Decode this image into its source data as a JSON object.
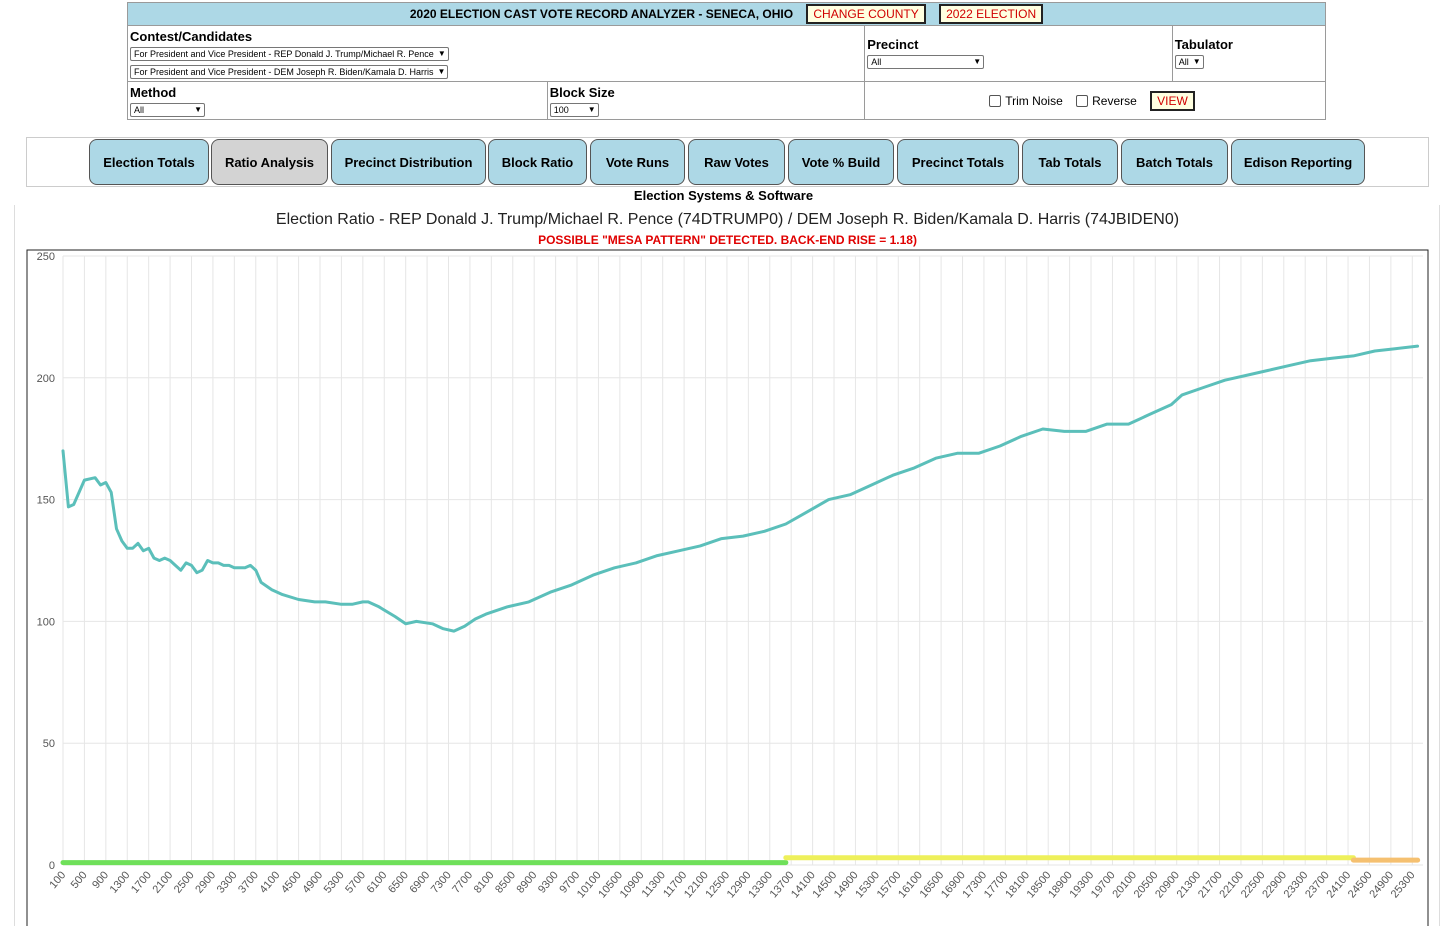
{
  "header": {
    "title": "2020 ELECTION CAST VOTE RECORD ANALYZER - SENECA, OHIO",
    "change_county": "CHANGE COUNTY",
    "election_2022": "2022 ELECTION"
  },
  "filters": {
    "contest_label": "Contest/Candidates",
    "contest1": "For President and Vice President - REP Donald J. Trump/Michael R. Pence",
    "contest2": "For President and Vice President - DEM Joseph R. Biden/Kamala D. Harris",
    "precinct_label": "Precinct",
    "precinct_value": "All",
    "tabulator_label": "Tabulator",
    "tabulator_value": "All",
    "method_label": "Method",
    "method_value": "All",
    "block_label": "Block Size",
    "block_value": "100",
    "trim_noise": "Trim Noise",
    "reverse": "Reverse",
    "view": "VIEW"
  },
  "tabs": [
    "Election Totals",
    "Ratio Analysis",
    "Precinct Distribution",
    "Block Ratio",
    "Vote Runs",
    "Raw Votes",
    "Vote % Build",
    "Precinct Totals",
    "Tab Totals",
    "Batch Totals",
    "Edison Reporting"
  ],
  "active_tab": "Ratio Analysis",
  "vendor": "Election Systems & Software",
  "chart_data": {
    "type": "line",
    "title": "Election Ratio - REP Donald J. Trump/Michael R. Pence (74DTRUMP0) / DEM Joseph R. Biden/Kamala D. Harris (74JBIDEN0)",
    "subtitle": "POSSIBLE \"MESA PATTERN\" DETECTED. BACK-END RISE = 1.18)",
    "ylim": [
      0,
      250
    ],
    "yticks": [
      0,
      50,
      100,
      150,
      200,
      250
    ],
    "xlim": [
      100,
      25500
    ],
    "xtick_start": 100,
    "xtick_step": 400,
    "xtick_end": 25300,
    "grid": true,
    "series": [
      {
        "color": "#5bbfba",
        "x": [
          100,
          200,
          300,
          500,
          700,
          800,
          900,
          1000,
          1100,
          1200,
          1300,
          1400,
          1500,
          1600,
          1700,
          1800,
          1900,
          2000,
          2100,
          2200,
          2300,
          2400,
          2500,
          2600,
          2700,
          2800,
          2900,
          3000,
          3100,
          3200,
          3300,
          3400,
          3500,
          3600,
          3700,
          3800,
          4000,
          4200,
          4500,
          4800,
          5000,
          5300,
          5500,
          5700,
          5800,
          6000,
          6300,
          6500,
          6700,
          7000,
          7200,
          7400,
          7600,
          7800,
          8000,
          8400,
          8800,
          9200,
          9600,
          10000,
          10400,
          10800,
          11200,
          11600,
          12000,
          12400,
          12800,
          13200,
          13600,
          14000,
          14400,
          14800,
          15200,
          15600,
          16000,
          16400,
          16800,
          17200,
          17600,
          18000,
          18400,
          18800,
          19200,
          19600,
          20000,
          20200,
          20400,
          20800,
          21000,
          21400,
          21800,
          22200,
          22600,
          23000,
          23400,
          23800,
          24200,
          24600,
          25000,
          25400
        ],
        "y": [
          170,
          147,
          148,
          158,
          159,
          156,
          157,
          153,
          138,
          133,
          130,
          130,
          132,
          129,
          130,
          126,
          125,
          126,
          125,
          123,
          121,
          124,
          123,
          120,
          121,
          125,
          124,
          124,
          123,
          123,
          122,
          122,
          122,
          123,
          121,
          116,
          113,
          111,
          109,
          108,
          108,
          107,
          107,
          108,
          108,
          106,
          102,
          99,
          100,
          99,
          97,
          96,
          98,
          101,
          103,
          106,
          108,
          112,
          115,
          119,
          122,
          124,
          127,
          129,
          131,
          134,
          135,
          137,
          140,
          145,
          150,
          152,
          156,
          160,
          163,
          167,
          169,
          169,
          172,
          176,
          179,
          178,
          178,
          181,
          181,
          183,
          185,
          189,
          193,
          196,
          199,
          201,
          203,
          205,
          207,
          208,
          209,
          211,
          212,
          213
        ]
      }
    ],
    "bottom_band_colors": [
      "#6fe05a",
      "#eef05a",
      "#f5c070"
    ]
  }
}
